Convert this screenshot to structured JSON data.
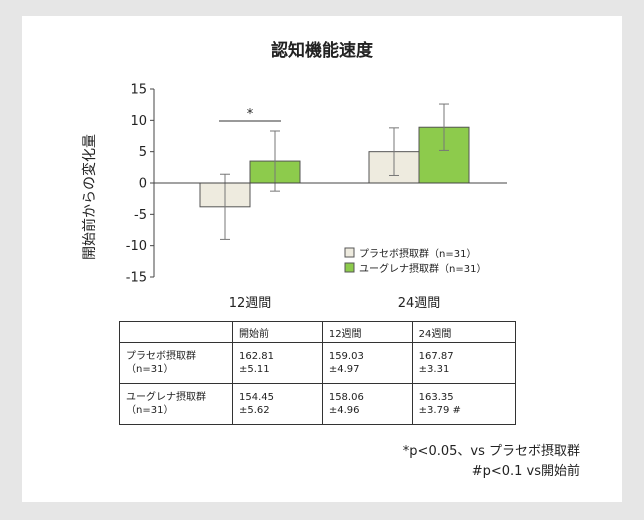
{
  "chart_data": {
    "type": "bar",
    "title": "認知機能速度",
    "ylabel": "開始前からの変化量",
    "xlabel": "",
    "categories": [
      "12週間",
      "24週間"
    ],
    "ylim": [
      -15,
      15
    ],
    "yticks": [
      15,
      10,
      5,
      0,
      -5,
      -10,
      -15
    ],
    "grid": false,
    "legend_position": "bottom-right",
    "series": [
      {
        "name": "プラセボ摂取群（n=31）",
        "color": "#eeebdf",
        "values": [
          -3.8,
          5.0
        ],
        "error": [
          5.2,
          3.8
        ]
      },
      {
        "name": "ユーグレナ摂取群（n=31）",
        "color": "#8dcb4c",
        "values": [
          3.5,
          8.9
        ],
        "error": [
          4.8,
          3.7
        ]
      }
    ],
    "annotations": [
      {
        "text": "*",
        "category": "12週間"
      }
    ]
  },
  "table": {
    "columns": [
      "",
      "開始前",
      "12週間",
      "24週間"
    ],
    "rows": [
      {
        "label": "プラセボ摂取群\n（n=31）",
        "cells": [
          "162.81\n±5.11",
          "159.03\n±4.97",
          "167.87\n±3.31"
        ]
      },
      {
        "label": "ユーグレナ摂取群\n（n=31）",
        "cells": [
          "154.45\n±5.62",
          "158.06\n±4.96",
          "163.35\n±3.79 #"
        ]
      }
    ]
  },
  "footnotes": [
    "*p<0.05、vs プラセボ摂取群",
    "#p<0.1 vs開始前"
  ]
}
